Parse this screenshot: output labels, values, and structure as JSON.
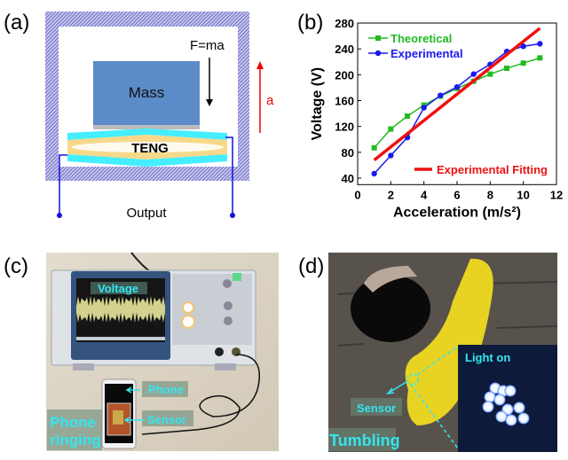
{
  "panels": {
    "a": {
      "label": "(a)",
      "mass": "Mass",
      "force": "F=ma",
      "teng": "TENG",
      "accel": "a",
      "output": "Output"
    },
    "b": {
      "label": "(b)"
    },
    "c": {
      "label": "(c)",
      "voltage": "Voltage",
      "phone": "Phone",
      "sensor": "Sensor",
      "caption_line1": "Phone",
      "caption_line2": "ringing"
    },
    "d": {
      "label": "(d)",
      "light": "Light on",
      "sensor": "Sensor",
      "caption": "Tumbling"
    }
  },
  "colors": {
    "theoretical": "#22bb22",
    "experimental": "#1a1aee",
    "fitting": "#ee1111",
    "callout": "#33e6f0",
    "mass": "#5b8bc9",
    "teng_outer": "#44eeff",
    "teng_inner": "#f8d98a"
  },
  "chart_data": {
    "type": "line",
    "xlabel": "Acceleration (m/s²)",
    "ylabel": "Voltage (V)",
    "xlim": [
      0,
      12
    ],
    "ylim": [
      30,
      280
    ],
    "xticks": [
      0,
      2,
      4,
      6,
      8,
      10,
      12
    ],
    "yticks": [
      40,
      80,
      120,
      160,
      200,
      240,
      280
    ],
    "grid": false,
    "legend": "top-left",
    "series": [
      {
        "name": "Theoretical",
        "marker": "square",
        "x": [
          1,
          2,
          3,
          4,
          5,
          6,
          7,
          8,
          9,
          10,
          11
        ],
        "y": [
          87,
          116,
          136,
          153,
          167,
          179,
          190,
          201,
          210,
          218,
          226
        ]
      },
      {
        "name": "Experimental",
        "marker": "circle",
        "x": [
          1,
          2,
          3,
          4,
          5,
          6,
          7,
          8,
          9,
          10,
          11
        ],
        "y": [
          47,
          75,
          103,
          149,
          168,
          181,
          201,
          216,
          236,
          244,
          248
        ]
      },
      {
        "name": "Experimental Fitting",
        "marker": "none",
        "x": [
          1,
          11
        ],
        "y": [
          68,
          272
        ]
      }
    ]
  }
}
